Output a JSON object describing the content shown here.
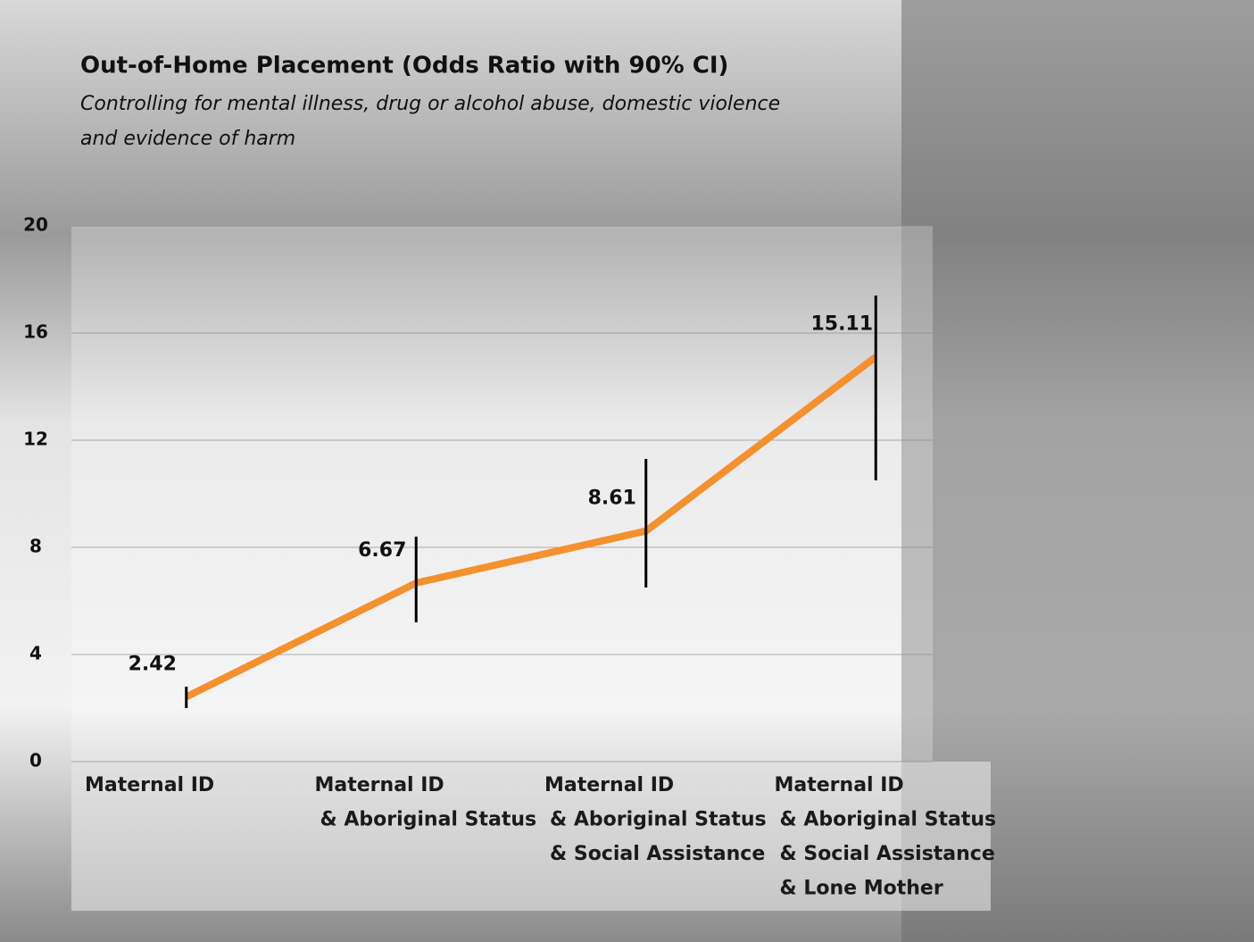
{
  "chart_data": {
    "type": "line",
    "title": "Out-of-Home Placement (Odds Ratio with 90% CI)",
    "subtitle": [
      "Controlling for mental illness, drug or alcohol abuse, domestic violence",
      "and evidence of harm"
    ],
    "categories": [
      [
        "Maternal ID"
      ],
      [
        "Maternal ID",
        "& Aboriginal Status"
      ],
      [
        "Maternal ID",
        "& Aboriginal Status",
        "& Social Assistance"
      ],
      [
        "Maternal ID",
        "& Aboriginal Status",
        "& Social Assistance",
        "& Lone Mother"
      ]
    ],
    "values": [
      2.42,
      6.67,
      8.61,
      15.11
    ],
    "ci_lower": [
      2.0,
      5.2,
      6.5,
      10.5
    ],
    "ci_upper": [
      2.8,
      8.4,
      11.3,
      17.4
    ],
    "color": "#f5902f",
    "error_color": "#000000",
    "ylim": [
      0,
      20
    ],
    "yticks": [
      0,
      4,
      8,
      12,
      16,
      20
    ],
    "grid": true
  }
}
